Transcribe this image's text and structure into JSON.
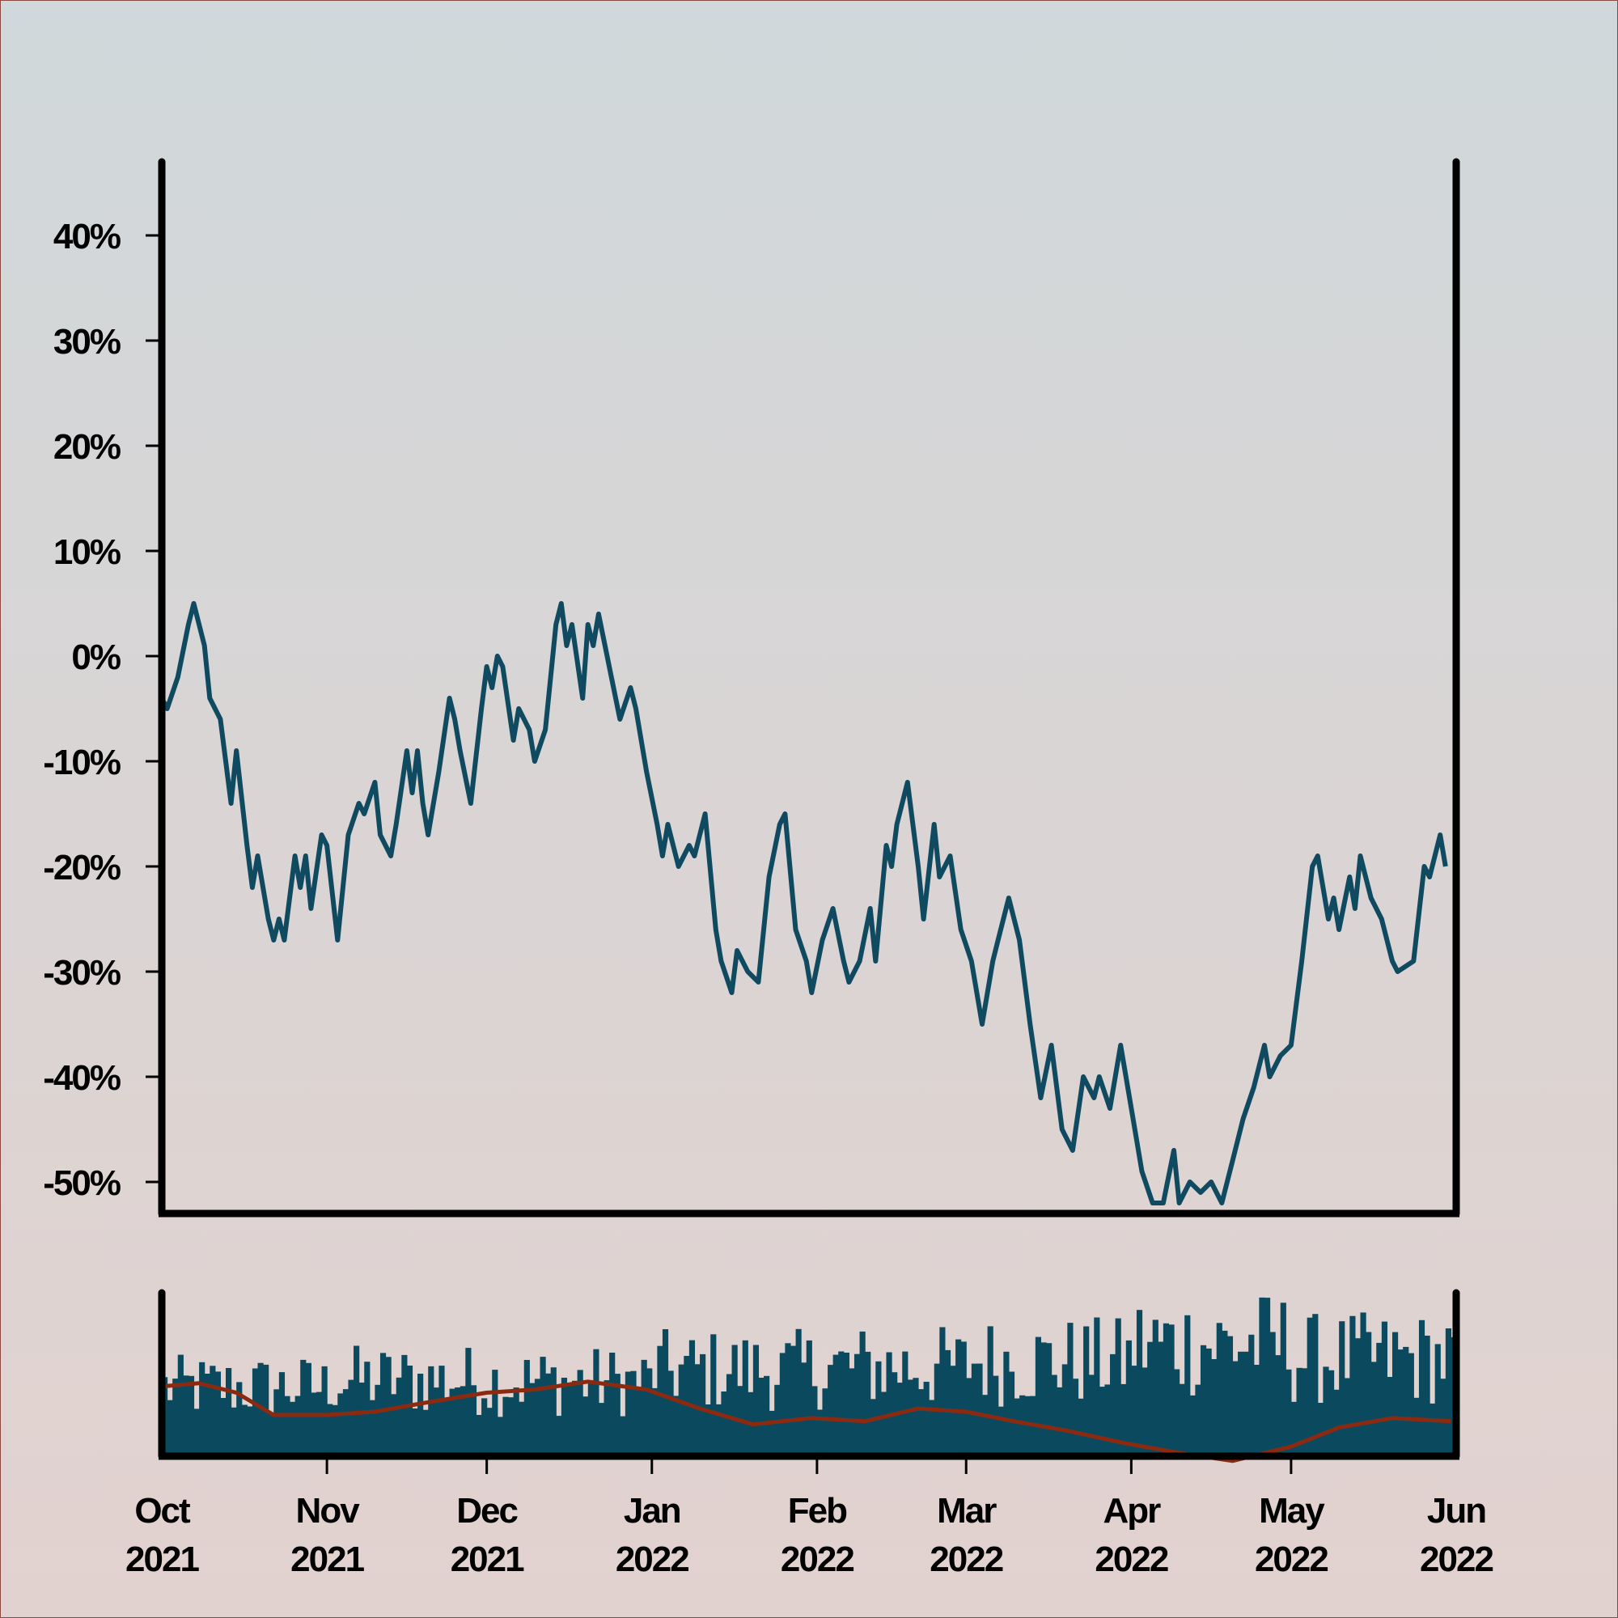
{
  "chart_data": [
    {
      "type": "line",
      "title": "",
      "xlabel": "",
      "ylabel": "",
      "ylim": [
        -53,
        47
      ],
      "yticks": [
        40,
        30,
        20,
        10,
        0,
        -10,
        -20,
        -30,
        -40,
        -50
      ],
      "ytick_labels": [
        "40%",
        "30%",
        "20%",
        "10%",
        "0%",
        "-10%",
        "-20%",
        "-30%",
        "-40%",
        "-50%"
      ],
      "x_range": [
        "2021-10-01",
        "2022-06-01"
      ],
      "series": [
        {
          "color": "#0f4a60",
          "points": [
            [
              "2021-10-01",
              -4
            ],
            [
              "2021-10-02",
              -5
            ],
            [
              "2021-10-04",
              -2
            ],
            [
              "2021-10-06",
              3
            ],
            [
              "2021-10-07",
              5
            ],
            [
              "2021-10-09",
              1
            ],
            [
              "2021-10-10",
              -4
            ],
            [
              "2021-10-12",
              -6
            ],
            [
              "2021-10-14",
              -14
            ],
            [
              "2021-10-15",
              -9
            ],
            [
              "2021-10-17",
              -18
            ],
            [
              "2021-10-18",
              -22
            ],
            [
              "2021-10-19",
              -19
            ],
            [
              "2021-10-21",
              -25
            ],
            [
              "2021-10-22",
              -27
            ],
            [
              "2021-10-23",
              -25
            ],
            [
              "2021-10-24",
              -27
            ],
            [
              "2021-10-26",
              -19
            ],
            [
              "2021-10-27",
              -22
            ],
            [
              "2021-10-28",
              -19
            ],
            [
              "2021-10-29",
              -24
            ],
            [
              "2021-10-31",
              -17
            ],
            [
              "2021-11-01",
              -18
            ],
            [
              "2021-11-03",
              -27
            ],
            [
              "2021-11-04",
              -22
            ],
            [
              "2021-11-05",
              -17
            ],
            [
              "2021-11-07",
              -14
            ],
            [
              "2021-11-08",
              -15
            ],
            [
              "2021-11-10",
              -12
            ],
            [
              "2021-11-11",
              -17
            ],
            [
              "2021-11-13",
              -19
            ],
            [
              "2021-11-14",
              -16
            ],
            [
              "2021-11-16",
              -9
            ],
            [
              "2021-11-17",
              -13
            ],
            [
              "2021-11-18",
              -9
            ],
            [
              "2021-11-19",
              -14
            ],
            [
              "2021-11-20",
              -17
            ],
            [
              "2021-11-22",
              -11
            ],
            [
              "2021-11-24",
              -4
            ],
            [
              "2021-11-25",
              -6
            ],
            [
              "2021-11-26",
              -9
            ],
            [
              "2021-11-28",
              -14
            ],
            [
              "2021-11-30",
              -5
            ],
            [
              "2021-12-01",
              -1
            ],
            [
              "2021-12-02",
              -3
            ],
            [
              "2021-12-03",
              0
            ],
            [
              "2021-12-04",
              -1
            ],
            [
              "2021-12-06",
              -8
            ],
            [
              "2021-12-07",
              -5
            ],
            [
              "2021-12-09",
              -7
            ],
            [
              "2021-12-10",
              -10
            ],
            [
              "2021-12-12",
              -7
            ],
            [
              "2021-12-14",
              3
            ],
            [
              "2021-12-15",
              5
            ],
            [
              "2021-12-16",
              1
            ],
            [
              "2021-12-17",
              3
            ],
            [
              "2021-12-19",
              -4
            ],
            [
              "2021-12-20",
              3
            ],
            [
              "2021-12-21",
              1
            ],
            [
              "2021-12-22",
              4
            ],
            [
              "2021-12-24",
              -1
            ],
            [
              "2021-12-26",
              -6
            ],
            [
              "2021-12-28",
              -3
            ],
            [
              "2021-12-29",
              -5
            ],
            [
              "2021-12-31",
              -11
            ],
            [
              "2022-01-02",
              -16
            ],
            [
              "2022-01-03",
              -19
            ],
            [
              "2022-01-04",
              -16
            ],
            [
              "2022-01-06",
              -20
            ],
            [
              "2022-01-08",
              -18
            ],
            [
              "2022-01-09",
              -19
            ],
            [
              "2022-01-11",
              -15
            ],
            [
              "2022-01-13",
              -26
            ],
            [
              "2022-01-14",
              -29
            ],
            [
              "2022-01-16",
              -32
            ],
            [
              "2022-01-17",
              -28
            ],
            [
              "2022-01-19",
              -30
            ],
            [
              "2022-01-21",
              -31
            ],
            [
              "2022-01-23",
              -21
            ],
            [
              "2022-01-25",
              -16
            ],
            [
              "2022-01-26",
              -15
            ],
            [
              "2022-01-28",
              -26
            ],
            [
              "2022-01-30",
              -29
            ],
            [
              "2022-01-31",
              -32
            ],
            [
              "2022-02-02",
              -27
            ],
            [
              "2022-02-04",
              -24
            ],
            [
              "2022-02-06",
              -29
            ],
            [
              "2022-02-07",
              -31
            ],
            [
              "2022-02-09",
              -29
            ],
            [
              "2022-02-11",
              -24
            ],
            [
              "2022-02-12",
              -29
            ],
            [
              "2022-02-14",
              -18
            ],
            [
              "2022-02-15",
              -20
            ],
            [
              "2022-02-16",
              -16
            ],
            [
              "2022-02-18",
              -12
            ],
            [
              "2022-02-20",
              -20
            ],
            [
              "2022-02-21",
              -25
            ],
            [
              "2022-02-23",
              -16
            ],
            [
              "2022-02-24",
              -21
            ],
            [
              "2022-02-26",
              -19
            ],
            [
              "2022-02-28",
              -26
            ],
            [
              "2022-03-02",
              -29
            ],
            [
              "2022-03-04",
              -35
            ],
            [
              "2022-03-06",
              -29
            ],
            [
              "2022-03-07",
              -27
            ],
            [
              "2022-03-09",
              -23
            ],
            [
              "2022-03-11",
              -27
            ],
            [
              "2022-03-13",
              -35
            ],
            [
              "2022-03-15",
              -42
            ],
            [
              "2022-03-17",
              -37
            ],
            [
              "2022-03-19",
              -45
            ],
            [
              "2022-03-21",
              -47
            ],
            [
              "2022-03-23",
              -40
            ],
            [
              "2022-03-25",
              -42
            ],
            [
              "2022-03-26",
              -40
            ],
            [
              "2022-03-28",
              -43
            ],
            [
              "2022-03-30",
              -37
            ],
            [
              "2022-04-01",
              -43
            ],
            [
              "2022-04-03",
              -49
            ],
            [
              "2022-04-05",
              -52
            ],
            [
              "2022-04-07",
              -52
            ],
            [
              "2022-04-09",
              -47
            ],
            [
              "2022-04-10",
              -52
            ],
            [
              "2022-04-12",
              -50
            ],
            [
              "2022-04-14",
              -51
            ],
            [
              "2022-04-16",
              -50
            ],
            [
              "2022-04-18",
              -52
            ],
            [
              "2022-04-20",
              -48
            ],
            [
              "2022-04-22",
              -44
            ],
            [
              "2022-04-24",
              -41
            ],
            [
              "2022-04-26",
              -37
            ],
            [
              "2022-04-27",
              -40
            ],
            [
              "2022-04-29",
              -38
            ],
            [
              "2022-05-01",
              -37
            ],
            [
              "2022-05-03",
              -29
            ],
            [
              "2022-05-05",
              -20
            ],
            [
              "2022-05-06",
              -19
            ],
            [
              "2022-05-08",
              -25
            ],
            [
              "2022-05-09",
              -23
            ],
            [
              "2022-05-10",
              -26
            ],
            [
              "2022-05-12",
              -21
            ],
            [
              "2022-05-13",
              -24
            ],
            [
              "2022-05-14",
              -19
            ],
            [
              "2022-05-16",
              -23
            ],
            [
              "2022-05-18",
              -25
            ],
            [
              "2022-05-20",
              -29
            ],
            [
              "2022-05-21",
              -30
            ],
            [
              "2022-05-24",
              -29
            ],
            [
              "2022-05-26",
              -20
            ],
            [
              "2022-05-27",
              -21
            ],
            [
              "2022-05-29",
              -17
            ],
            [
              "2022-05-30",
              -20
            ]
          ]
        }
      ]
    },
    {
      "type": "bar",
      "title": "",
      "xlabel": "",
      "ylabel": "",
      "x_range": [
        "2021-10-01",
        "2022-06-01"
      ],
      "xtick_labels": [
        [
          "Oct",
          "2021"
        ],
        [
          "Nov",
          "2021"
        ],
        [
          "Dec",
          "2021"
        ],
        [
          "Jan",
          "2022"
        ],
        [
          "Feb",
          "2022"
        ],
        [
          "Mar",
          "2022"
        ],
        [
          "Apr",
          "2022"
        ],
        [
          "May",
          "2022"
        ],
        [
          "Jun",
          "2022"
        ]
      ],
      "bar_color": "#0b4a5e",
      "moving_average_color": "#8b2a10",
      "ylim": [
        0,
        1
      ],
      "monthly_level": [
        0.46,
        0.51,
        0.5,
        0.58,
        0.6,
        0.64,
        0.76,
        0.66
      ],
      "moving_average": [
        [
          "2021-10-01",
          0.42
        ],
        [
          "2021-10-08",
          0.44
        ],
        [
          "2021-10-15",
          0.38
        ],
        [
          "2021-10-22",
          0.24
        ],
        [
          "2021-11-01",
          0.24
        ],
        [
          "2021-11-10",
          0.26
        ],
        [
          "2021-11-20",
          0.32
        ],
        [
          "2021-12-01",
          0.38
        ],
        [
          "2021-12-10",
          0.4
        ],
        [
          "2021-12-20",
          0.45
        ],
        [
          "2021-12-31",
          0.4
        ],
        [
          "2022-01-10",
          0.28
        ],
        [
          "2022-01-20",
          0.18
        ],
        [
          "2022-01-31",
          0.22
        ],
        [
          "2022-02-10",
          0.2
        ],
        [
          "2022-02-20",
          0.28
        ],
        [
          "2022-03-01",
          0.26
        ],
        [
          "2022-03-10",
          0.2
        ],
        [
          "2022-03-20",
          0.14
        ],
        [
          "2022-03-31",
          0.06
        ],
        [
          "2022-04-10",
          0.0
        ],
        [
          "2022-04-20",
          -0.05
        ],
        [
          "2022-05-01",
          0.04
        ],
        [
          "2022-05-10",
          0.16
        ],
        [
          "2022-05-20",
          0.22
        ],
        [
          "2022-05-31",
          0.2
        ]
      ]
    }
  ]
}
